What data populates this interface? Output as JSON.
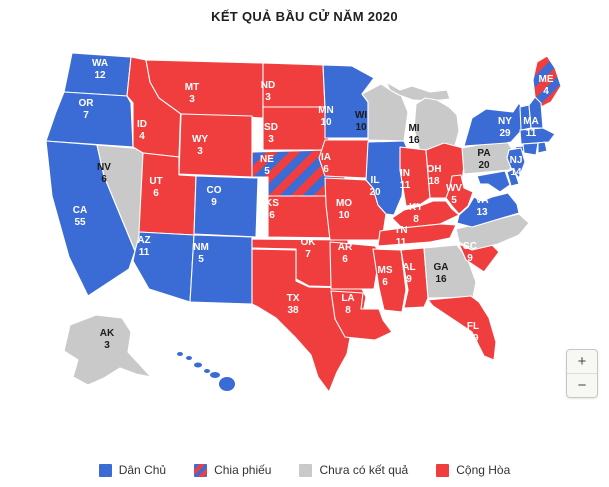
{
  "title": "KẾT QUẢ BẦU CỬ NĂM 2020",
  "colors": {
    "democrat": "#3B6BD5",
    "republican": "#F03E3E",
    "no_result": "#C9C9C9",
    "split": "striped",
    "state_border": "#FFFFFF",
    "label_light": "#FFFFFF",
    "label_dark": "#1B1B1B"
  },
  "legend": [
    {
      "id": "democrat",
      "label": "Dân Chủ"
    },
    {
      "id": "split",
      "label": "Chia phiếu"
    },
    {
      "id": "no_result",
      "label": "Chưa có kết quả"
    },
    {
      "id": "republican",
      "label": "Cộng Hòa"
    }
  ],
  "zoom_controls": {
    "zoom_in": "+",
    "zoom_out": "−"
  },
  "states": [
    {
      "abbr": "WA",
      "votes": "12",
      "party": "democrat"
    },
    {
      "abbr": "OR",
      "votes": "7",
      "party": "democrat"
    },
    {
      "abbr": "CA",
      "votes": "55",
      "party": "democrat"
    },
    {
      "abbr": "NV",
      "votes": "6",
      "party": "no_result"
    },
    {
      "abbr": "ID",
      "votes": "4",
      "party": "republican"
    },
    {
      "abbr": "MT",
      "votes": "3",
      "party": "republican"
    },
    {
      "abbr": "WY",
      "votes": "3",
      "party": "republican"
    },
    {
      "abbr": "UT",
      "votes": "6",
      "party": "republican"
    },
    {
      "abbr": "CO",
      "votes": "9",
      "party": "democrat"
    },
    {
      "abbr": "AZ",
      "votes": "11",
      "party": "democrat"
    },
    {
      "abbr": "NM",
      "votes": "5",
      "party": "democrat"
    },
    {
      "abbr": "ND",
      "votes": "3",
      "party": "republican"
    },
    {
      "abbr": "SD",
      "votes": "3",
      "party": "republican"
    },
    {
      "abbr": "NE",
      "votes": "5",
      "party": "split"
    },
    {
      "abbr": "KS",
      "votes": "6",
      "party": "republican"
    },
    {
      "abbr": "OK",
      "votes": "7",
      "party": "republican"
    },
    {
      "abbr": "TX",
      "votes": "38",
      "party": "republican"
    },
    {
      "abbr": "MN",
      "votes": "10",
      "party": "democrat"
    },
    {
      "abbr": "IA",
      "votes": "6",
      "party": "republican"
    },
    {
      "abbr": "MO",
      "votes": "10",
      "party": "republican"
    },
    {
      "abbr": "AR",
      "votes": "6",
      "party": "republican"
    },
    {
      "abbr": "LA",
      "votes": "8",
      "party": "republican"
    },
    {
      "abbr": "WI",
      "votes": "10",
      "party": "no_result"
    },
    {
      "abbr": "IL",
      "votes": "20",
      "party": "democrat"
    },
    {
      "abbr": "MI",
      "votes": "16",
      "party": "no_result"
    },
    {
      "abbr": "IN",
      "votes": "11",
      "party": "republican"
    },
    {
      "abbr": "OH",
      "votes": "18",
      "party": "republican"
    },
    {
      "abbr": "KY",
      "votes": "8",
      "party": "republican"
    },
    {
      "abbr": "TN",
      "votes": "11",
      "party": "republican"
    },
    {
      "abbr": "MS",
      "votes": "6",
      "party": "republican"
    },
    {
      "abbr": "AL",
      "votes": "9",
      "party": "republican"
    },
    {
      "abbr": "GA",
      "votes": "16",
      "party": "no_result"
    },
    {
      "abbr": "SC",
      "votes": "9",
      "party": "republican"
    },
    {
      "abbr": "NC",
      "votes": null,
      "party": "no_result"
    },
    {
      "abbr": "FL",
      "votes": "29",
      "party": "republican"
    },
    {
      "abbr": "VA",
      "votes": "13",
      "party": "democrat"
    },
    {
      "abbr": "WV",
      "votes": "5",
      "party": "republican"
    },
    {
      "abbr": "PA",
      "votes": "20",
      "party": "no_result"
    },
    {
      "abbr": "NY",
      "votes": "29",
      "party": "democrat"
    },
    {
      "abbr": "NJ",
      "votes": "14",
      "party": "democrat"
    },
    {
      "abbr": "MA",
      "votes": "11",
      "party": "democrat"
    },
    {
      "abbr": "ME",
      "votes": "4",
      "party": "split"
    },
    {
      "abbr": "VT",
      "votes": null,
      "party": "democrat"
    },
    {
      "abbr": "NH",
      "votes": null,
      "party": "democrat"
    },
    {
      "abbr": "CT",
      "votes": null,
      "party": "democrat"
    },
    {
      "abbr": "RI",
      "votes": null,
      "party": "democrat"
    },
    {
      "abbr": "DE",
      "votes": null,
      "party": "democrat"
    },
    {
      "abbr": "MD",
      "votes": null,
      "party": "democrat"
    },
    {
      "abbr": "AK",
      "votes": "3",
      "party": "no_result"
    },
    {
      "abbr": "HI",
      "votes": null,
      "party": "democrat"
    }
  ]
}
